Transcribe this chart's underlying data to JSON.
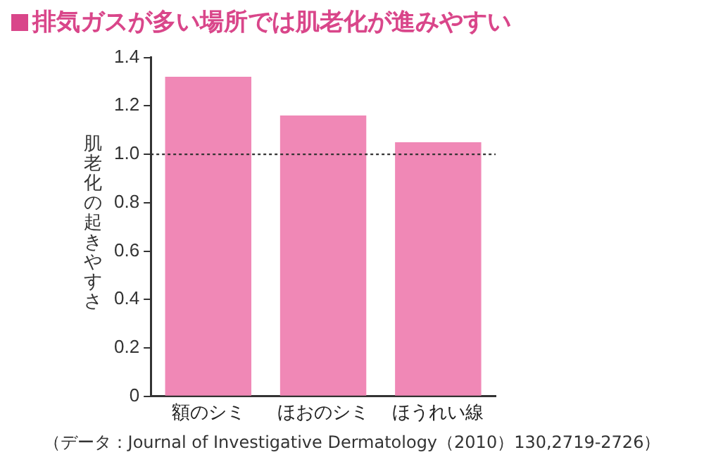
{
  "chart_data": {
    "type": "bar",
    "title": "排気ガスが多い場所では肌老化が進みやすい",
    "ylabel": "肌老化の起きやすさ",
    "categories": [
      "額のシミ",
      "ほおのシミ",
      "ほうれい線"
    ],
    "values": [
      1.32,
      1.16,
      1.05
    ],
    "color": "#f088b6",
    "ylim": [
      0,
      1.4
    ],
    "yticks": [
      0,
      0.2,
      0.4,
      0.6,
      0.8,
      {
        "value": 1,
        "label": "1.0"
      },
      1.2,
      1.4
    ],
    "ref_lines": [
      {
        "axis": "y",
        "value": 1,
        "color": "#333333",
        "line_style": "dotted"
      }
    ],
    "grid": false,
    "legend": false,
    "annotations": [
      "（データ：Journal of Investigative Dermatology（2010）130,2719-2726）"
    ]
  }
}
